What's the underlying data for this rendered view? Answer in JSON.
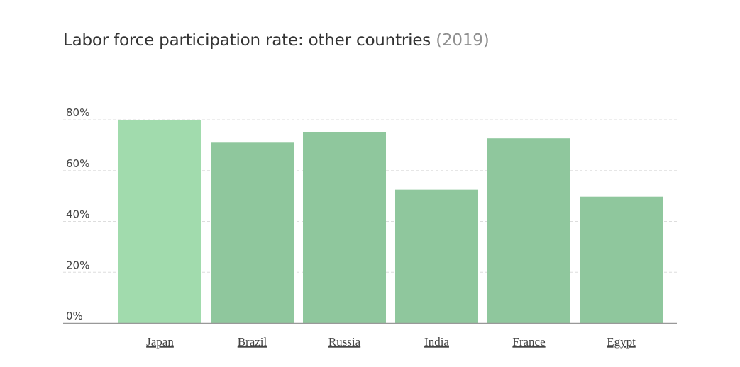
{
  "title": {
    "main": "Labor force participation rate: other countries",
    "year": "(2019)"
  },
  "chart_data": {
    "type": "bar",
    "title": "Labor force participation rate: other countries (2019)",
    "categories": [
      "Japan",
      "Brazil",
      "Russia",
      "India",
      "France",
      "Egypt"
    ],
    "values": [
      80,
      71,
      75,
      52.5,
      72.7,
      49.7
    ],
    "yticks": [
      "0%",
      "20%",
      "40%",
      "60%",
      "80%"
    ],
    "ylim": [
      0,
      80
    ],
    "grid": true,
    "colors": {
      "highlight": "#a1dbad",
      "bar": "#8fc79d",
      "grid": "#dddddd",
      "axis": "#999999"
    },
    "highlight_index": 0
  }
}
